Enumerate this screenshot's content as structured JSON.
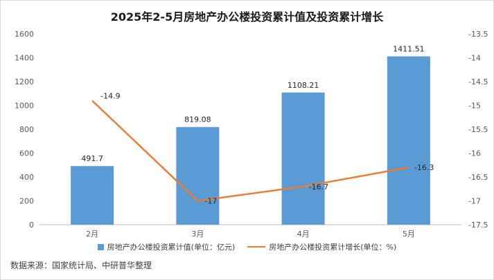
{
  "chart_data": {
    "type": "bar",
    "title": "2025年2-5月房地产办公楼投资累计值及投资累计增长",
    "categories": [
      "2月",
      "3月",
      "4月",
      "5月"
    ],
    "series": [
      {
        "name": "房地产办公楼投资累计值(单位：亿元)",
        "type": "bar",
        "axis": "left",
        "color": "#5b9bd5",
        "values": [
          491.7,
          819.08,
          1108.21,
          1411.51
        ],
        "labels": [
          "491.7",
          "819.08",
          "1108.21",
          "1411.51"
        ]
      },
      {
        "name": "房地产办公楼投资累计增长(单位：%)",
        "type": "line",
        "axis": "right",
        "color": "#ed7d31",
        "values": [
          -14.9,
          -17,
          -16.7,
          -16.3
        ],
        "labels": [
          "-14.9",
          "-17",
          "-16.7",
          "-16.3"
        ]
      }
    ],
    "y_left": {
      "min": 0,
      "max": 1600,
      "ticks": [
        "0",
        "200",
        "400",
        "600",
        "800",
        "1000",
        "1200",
        "1400",
        "1600"
      ]
    },
    "y_right": {
      "min": -17.5,
      "max": -13.5,
      "ticks": [
        "-17.5",
        "-17",
        "-16.5",
        "-16",
        "-15.5",
        "-15",
        "-14.5",
        "-14",
        "-13.5"
      ]
    },
    "grid": false,
    "legend_position": "bottom"
  },
  "source_text": "数据来源：国家统计局、中研普华整理"
}
